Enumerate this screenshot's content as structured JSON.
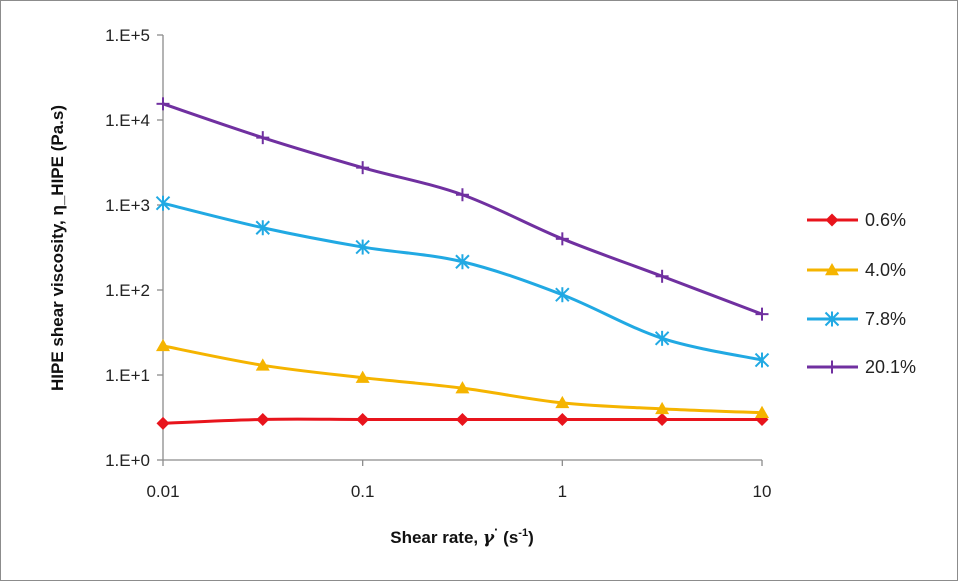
{
  "chart_data": {
    "type": "line",
    "xlabel": "Shear rate, γ̇ (s⁻¹)",
    "xlabel_parts": {
      "prefix": "Shear rate, ",
      "symbol": "γ",
      "dot": "·",
      "unit_open": " (s",
      "exponent": "-1",
      "unit_close": ")"
    },
    "ylabel": "HIPE shear viscosity, η_HIPE (Pa.s)",
    "x_scale": "log",
    "y_scale": "log",
    "xlim": [
      0.01,
      10
    ],
    "ylim": [
      1,
      100000
    ],
    "x_ticks": [
      0.01,
      0.1,
      1,
      10
    ],
    "x_tick_labels": [
      "0.01",
      "0.1",
      "1",
      "10"
    ],
    "y_ticks": [
      1,
      10,
      100,
      1000,
      10000,
      100000
    ],
    "y_tick_labels": [
      "1.E+0",
      "1.E+1",
      "1.E+2",
      "1.E+3",
      "1.E+4",
      "1.E+5"
    ],
    "grid": false,
    "legend_position": "right",
    "x": [
      0.01,
      0.0316,
      0.1,
      0.316,
      1,
      3.16,
      10
    ],
    "series": [
      {
        "name": "0.6%",
        "color": "#e8141c",
        "marker": "diamond",
        "values": [
          2.7,
          3.0,
          3.0,
          3.0,
          3.0,
          3.0,
          3.0
        ]
      },
      {
        "name": "4.0%",
        "color": "#f5b400",
        "marker": "triangle",
        "values": [
          22,
          13,
          9.3,
          7.0,
          4.7,
          4.0,
          3.6
        ]
      },
      {
        "name": "7.8%",
        "color": "#21a9e3",
        "marker": "asterisk",
        "values": [
          1050,
          540,
          320,
          215,
          88,
          27,
          15
        ]
      },
      {
        "name": "20.1%",
        "color": "#7030a0",
        "marker": "plus",
        "values": [
          15500,
          6200,
          2750,
          1320,
          400,
          145,
          52
        ]
      }
    ]
  }
}
